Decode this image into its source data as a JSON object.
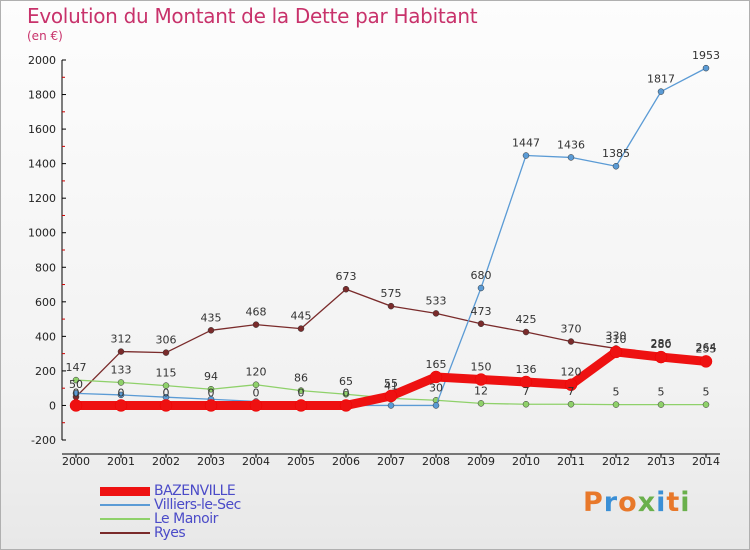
{
  "title": "Evolution du Montant de la Dette par Habitant",
  "subtitle": "(en €)",
  "logo": {
    "text": "Proxiti",
    "colors": [
      "#e8782a",
      "#3a8fd6",
      "#e8782a",
      "#6ab04c",
      "#3a8fd6",
      "#e8782a",
      "#6ab04c"
    ]
  },
  "chart_data": {
    "type": "line",
    "x": [
      2000,
      2001,
      2002,
      2003,
      2004,
      2005,
      2006,
      2007,
      2008,
      2009,
      2010,
      2011,
      2012,
      2013,
      2014
    ],
    "ylim": [
      -200,
      2000
    ],
    "yticks": [
      -200,
      0,
      200,
      400,
      600,
      800,
      1000,
      1200,
      1400,
      1600,
      1800,
      2000
    ],
    "grid": false,
    "legend_position": "bottom-left",
    "series": [
      {
        "name": "BAZENVILLE",
        "color": "#ee1111",
        "values": [
          0,
          0,
          0,
          0,
          0,
          0,
          0,
          55,
          165,
          150,
          136,
          120,
          310,
          280,
          255
        ],
        "labels": [
          "0",
          "0",
          "0",
          "0",
          "0",
          "0",
          "0",
          "55",
          "165",
          "150",
          "136",
          "120",
          "310",
          "280",
          "255"
        ]
      },
      {
        "name": "Villiers-le-Sec",
        "color": "#5b9bd5",
        "values": [
          70,
          61,
          48,
          36,
          23,
          12,
          0,
          0,
          0,
          680,
          1447,
          1436,
          1385,
          1817,
          1953
        ],
        "labels": [
          "",
          "",
          "",
          "",
          "",
          "",
          "",
          "",
          "",
          "680",
          "1447",
          "1436",
          "1385",
          "1817",
          "1953"
        ]
      },
      {
        "name": "Le Manoir",
        "color": "#8fd16a",
        "values": [
          147,
          133,
          115,
          94,
          120,
          86,
          65,
          41,
          30,
          12,
          7,
          7,
          5,
          5,
          5
        ],
        "labels": [
          "147",
          "133",
          "115",
          "94",
          "120",
          "86",
          "65",
          "41",
          "30",
          "12",
          "7",
          "7",
          "5",
          "5",
          "5"
        ]
      },
      {
        "name": "Ryes",
        "color": "#7a2b2b",
        "values": [
          50,
          312,
          306,
          435,
          468,
          445,
          673,
          575,
          533,
          473,
          425,
          370,
          330,
          286,
          264
        ],
        "labels": [
          "50",
          "312",
          "306",
          "435",
          "468",
          "445",
          "673",
          "575",
          "533",
          "473",
          "425",
          "370",
          "330",
          "286",
          "264"
        ]
      }
    ]
  }
}
